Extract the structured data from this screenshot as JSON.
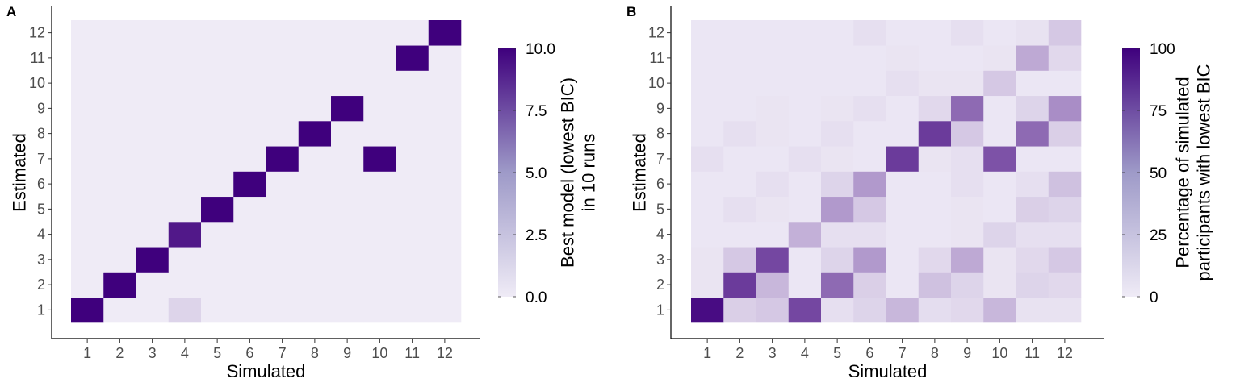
{
  "chart_data": [
    {
      "type": "heatmap",
      "panel_label": "A",
      "xlabel": "Simulated",
      "ylabel": "Estimated",
      "x_categories": [
        "1",
        "2",
        "3",
        "4",
        "5",
        "6",
        "7",
        "8",
        "9",
        "10",
        "11",
        "12"
      ],
      "y_categories": [
        "1",
        "2",
        "3",
        "4",
        "5",
        "6",
        "7",
        "8",
        "9",
        "10",
        "11",
        "12"
      ],
      "legend": {
        "title_lines": [
          "Best model (lowest BIC)",
          "in 10 runs"
        ],
        "range": [
          0,
          10
        ],
        "ticks": [
          0,
          2.5,
          5,
          7.5,
          10
        ],
        "tick_labels": [
          "0.0",
          "2.5",
          "5.0",
          "7.5",
          "10.0"
        ],
        "placement": "right"
      },
      "colors": {
        "low": "#efebf6",
        "high": "#3f007d"
      },
      "grid": false,
      "values": [
        [
          10,
          0,
          0,
          1,
          0,
          0,
          0,
          0,
          0,
          0,
          0,
          0
        ],
        [
          0,
          10,
          0,
          0,
          0,
          0,
          0,
          0,
          0,
          0,
          0,
          0
        ],
        [
          0,
          0,
          10,
          0,
          0,
          0,
          0,
          0,
          0,
          0,
          0,
          0
        ],
        [
          0,
          0,
          0,
          9,
          0,
          0,
          0,
          0,
          0,
          0,
          0,
          0
        ],
        [
          0,
          0,
          0,
          0,
          10,
          0,
          0,
          0,
          0,
          0,
          0,
          0
        ],
        [
          0,
          0,
          0,
          0,
          0,
          10,
          0,
          0,
          0,
          0,
          0,
          0
        ],
        [
          0,
          0,
          0,
          0,
          0,
          0,
          10,
          0,
          0,
          10,
          0,
          0
        ],
        [
          0,
          0,
          0,
          0,
          0,
          0,
          0,
          10,
          0,
          0,
          0,
          0
        ],
        [
          0,
          0,
          0,
          0,
          0,
          0,
          0,
          0,
          10,
          0,
          0,
          0
        ],
        [
          0,
          0,
          0,
          0,
          0,
          0,
          0,
          0,
          0,
          0,
          0,
          0
        ],
        [
          0,
          0,
          0,
          0,
          0,
          0,
          0,
          0,
          0,
          0,
          10,
          0
        ],
        [
          0,
          0,
          0,
          0,
          0,
          0,
          0,
          0,
          0,
          0,
          0,
          10
        ]
      ]
    },
    {
      "type": "heatmap",
      "panel_label": "B",
      "xlabel": "Simulated",
      "ylabel": "Estimated",
      "x_categories": [
        "1",
        "2",
        "3",
        "4",
        "5",
        "6",
        "7",
        "8",
        "9",
        "10",
        "11",
        "12"
      ],
      "y_categories": [
        "1",
        "2",
        "3",
        "4",
        "5",
        "6",
        "7",
        "8",
        "9",
        "10",
        "11",
        "12"
      ],
      "legend": {
        "title_lines": [
          "Percentage of simulated",
          "participants with lowest BIC"
        ],
        "range": [
          0,
          100
        ],
        "ticks": [
          0,
          25,
          50,
          75,
          100
        ],
        "tick_labels": [
          "0",
          "25",
          "50",
          "75",
          "100"
        ],
        "placement": "right"
      },
      "colors": {
        "low": "#efebf6",
        "high": "#3f007d"
      },
      "grid": false,
      "values": [
        [
          95,
          12,
          15,
          70,
          5,
          10,
          22,
          6,
          8,
          22,
          4,
          4
        ],
        [
          3,
          75,
          22,
          2,
          55,
          12,
          2,
          18,
          10,
          3,
          10,
          8
        ],
        [
          3,
          15,
          70,
          2,
          10,
          35,
          2,
          8,
          28,
          3,
          8,
          15
        ],
        [
          2,
          2,
          2,
          25,
          5,
          5,
          2,
          2,
          3,
          10,
          5,
          5
        ],
        [
          2,
          5,
          3,
          2,
          35,
          15,
          2,
          2,
          3,
          2,
          12,
          10
        ],
        [
          2,
          2,
          5,
          2,
          10,
          35,
          2,
          2,
          5,
          2,
          5,
          18
        ],
        [
          5,
          2,
          2,
          5,
          3,
          2,
          75,
          3,
          5,
          65,
          2,
          2
        ],
        [
          2,
          5,
          3,
          2,
          5,
          2,
          2,
          75,
          15,
          2,
          55,
          12
        ],
        [
          2,
          2,
          3,
          2,
          3,
          5,
          2,
          8,
          55,
          2,
          10,
          40
        ],
        [
          2,
          2,
          2,
          2,
          2,
          2,
          5,
          3,
          3,
          15,
          2,
          2
        ],
        [
          2,
          2,
          2,
          2,
          2,
          2,
          3,
          2,
          2,
          3,
          28,
          8
        ],
        [
          2,
          2,
          2,
          2,
          2,
          5,
          2,
          2,
          5,
          2,
          4,
          15
        ]
      ]
    }
  ]
}
